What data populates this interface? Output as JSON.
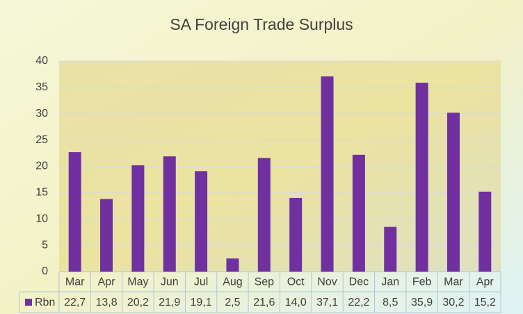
{
  "chart_data": {
    "type": "bar",
    "title": "SA Foreign Trade Surplus",
    "categories": [
      "Mar",
      "Apr",
      "May",
      "Jun",
      "Jul",
      "Aug",
      "Sep",
      "Oct",
      "Nov",
      "Dec",
      "Jan",
      "Feb",
      "Mar",
      "Apr"
    ],
    "series": [
      {
        "name": "Rbn",
        "color": "#7030a0",
        "values": [
          22.7,
          13.8,
          20.2,
          21.9,
          19.1,
          2.5,
          21.6,
          14.0,
          37.1,
          22.2,
          8.5,
          35.9,
          30.2,
          15.2
        ],
        "value_labels": [
          "22,7",
          "13,8",
          "20,2",
          "21,9",
          "19,1",
          "2,5",
          "21,6",
          "14,0",
          "37,1",
          "22,2",
          "8,5",
          "35,9",
          "30,2",
          "15,2"
        ]
      }
    ],
    "ylim": [
      0,
      40
    ],
    "yticks": [
      0,
      5,
      10,
      15,
      20,
      25,
      30,
      35,
      40
    ],
    "grid": true,
    "data_table": true
  }
}
